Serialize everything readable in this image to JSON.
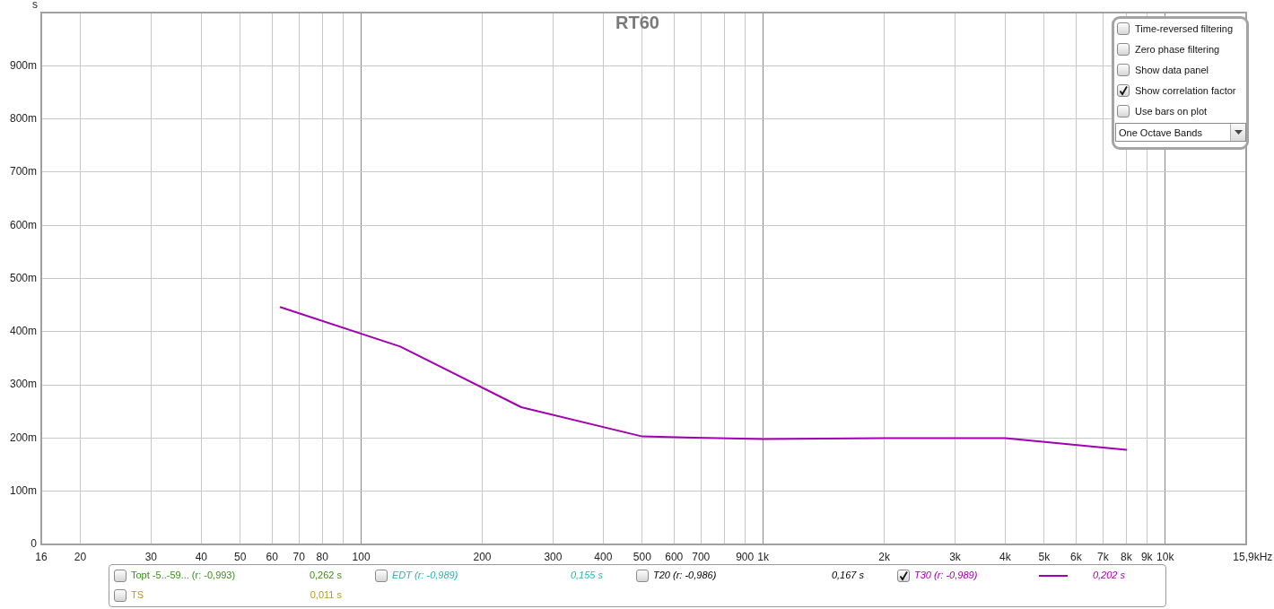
{
  "chart_data": {
    "type": "line",
    "title": "RT60",
    "ylabel": "s",
    "xlabel": "Hz",
    "x": [
      63,
      125,
      250,
      500,
      1000,
      2000,
      4000,
      8000
    ],
    "series": [
      {
        "name": "T30 (r: -0,989)",
        "color": "#a000b0",
        "values": [
          446,
          372,
          258,
          203,
          198,
          200,
          200,
          178
        ]
      }
    ],
    "xlim": [
      16,
      15900
    ],
    "ylim": [
      0,
      1000
    ],
    "xticks": [
      16,
      20,
      30,
      40,
      50,
      60,
      70,
      80,
      {
        "value": 90,
        "label": null
      },
      100,
      200,
      300,
      400,
      500,
      600,
      700,
      {
        "value": 800,
        "label": null
      },
      900,
      {
        "value": 1000,
        "label": "1k"
      },
      {
        "value": 2000,
        "label": "2k"
      },
      {
        "value": 3000,
        "label": "3k"
      },
      {
        "value": 4000,
        "label": "4k"
      },
      {
        "value": 5000,
        "label": "5k"
      },
      {
        "value": 6000,
        "label": "6k"
      },
      {
        "value": 7000,
        "label": "7k"
      },
      {
        "value": 8000,
        "label": "8k"
      },
      {
        "value": 9000,
        "label": "9k"
      },
      {
        "value": 10000,
        "label": "10k"
      },
      {
        "value": 15900,
        "label": "15,9k"
      }
    ],
    "yticks": [
      0,
      {
        "value": 100,
        "label": "100m"
      },
      {
        "value": 200,
        "label": "200m"
      },
      {
        "value": 300,
        "label": "300m"
      },
      {
        "value": 400,
        "label": "400m"
      },
      {
        "value": 500,
        "label": "500m"
      },
      {
        "value": 600,
        "label": "600m"
      },
      {
        "value": 700,
        "label": "700m"
      },
      {
        "value": 800,
        "label": "800m"
      },
      {
        "value": 900,
        "label": "900m"
      }
    ],
    "log": "x",
    "grid": true,
    "legend": "bottom",
    "marker": "none",
    "line_style": "solid",
    "annotations": [
      "Topt -5..-59... (r: -0,993)",
      "0,262 s",
      "EDT (r: -0,989)",
      "0,155 s",
      "T20 (r: -0,986)",
      "0,167 s",
      "0,202 s",
      "TS",
      "0,011 s",
      "Time-reversed filtering",
      "Zero phase filtering",
      "Show data panel",
      "Show correlation factor",
      "Use bars on plot",
      "One Octave Bands"
    ]
  }
}
